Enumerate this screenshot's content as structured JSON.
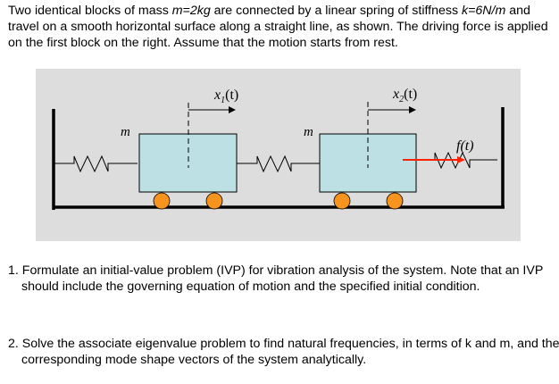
{
  "intro": {
    "t1": "Two identical blocks of mass ",
    "m": "m=2kg",
    "t2": " are connected by a linear spring of stiffness ",
    "k": "k=6N/m",
    "t3": " and travel on  a smooth horizontal surface along a straight line, as shown.  The driving force is applied on the first block on the right.  Assume that the motion starts from rest."
  },
  "diagram": {
    "mass_label": "m",
    "x1_label": "x",
    "x1_sub": "1",
    "x2_label": "x",
    "x2_sub": "2",
    "t_arg": "(t)",
    "force_label": "f(t)",
    "colors": {
      "background": "#dddddd",
      "block": "#bde0e5",
      "wheel": "#f7941d",
      "force": "#ff2200"
    }
  },
  "questions": [
    {
      "text": "1. Formulate an initial-value problem (IVP) for vibration analysis of the system.  Note that an IVP should include the governing equation of motion and the specified initial condition."
    },
    {
      "text": "2. Solve the associate eigenvalue problem to find natural frequencies, in terms of k and m, and the corresponding mode shape vectors of the system analytically."
    }
  ]
}
